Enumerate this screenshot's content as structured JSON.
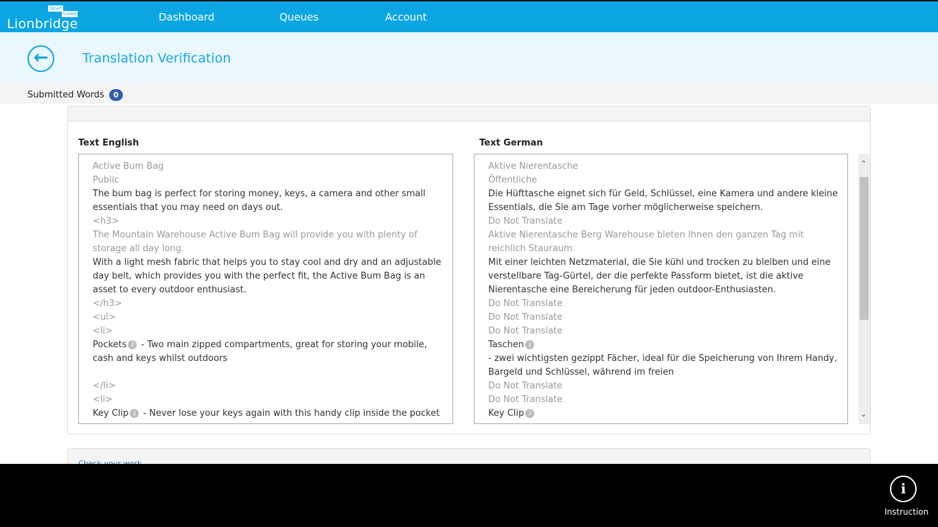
{
  "brand": {
    "name": "Lionbridge",
    "badge1": "Smart",
    "badge2": "Crowd"
  },
  "nav": {
    "dashboard": "Dashboard",
    "queues": "Queues",
    "account": "Account"
  },
  "page": {
    "title": "Translation Verification"
  },
  "submitted": {
    "label": "Submitted Words",
    "count": "0"
  },
  "source": {
    "label": "Text English",
    "lines": [
      {
        "t": "Active Bum Bag",
        "muted": true
      },
      {
        "t": "Public",
        "muted": true
      },
      {
        "t": "The bum bag is perfect for storing money, keys, a camera and other small essentials that you may need on days out.",
        "muted": false
      },
      {
        "t": "<h3>",
        "muted": true
      },
      {
        "t": "The Mountain Warehouse Active Bum Bag will provide you with plenty of storage all day long.",
        "muted": true
      },
      {
        "t": "With a light mesh fabric that helps you to stay cool and dry and an adjustable day belt, which provides you with the perfect fit, the Active Bum Bag is an asset to every outdoor enthusiast.",
        "muted": false
      },
      {
        "t": "</h3>",
        "muted": true
      },
      {
        "t": "<ul>",
        "muted": true
      },
      {
        "t": "<li>",
        "muted": true
      },
      {
        "t": "Pockets",
        "badge": "2",
        "after": " - Two main zipped compartments, great for storing your mobile, cash and keys whilst outdoors",
        "muted": false
      },
      {
        "t": " ",
        "muted": false
      },
      {
        "t": "</li>",
        "muted": true
      },
      {
        "t": "<li>",
        "muted": true
      },
      {
        "t": "Key Clip",
        "badge": "2",
        "after": " - Never lose your keys again with this handy clip inside the pocket",
        "muted": false
      }
    ]
  },
  "target": {
    "label": "Text German",
    "lines": [
      {
        "t": "Aktive Nierentasche",
        "muted": true
      },
      {
        "t": "Öffentliche",
        "muted": true
      },
      {
        "t": "Die Hüfttasche eignet sich für Geld, Schlüssel, eine Kamera und andere kleine Essentials, die Sie am Tage vorher möglicherweise speichern.",
        "muted": false
      },
      {
        "t": "Do Not Translate",
        "muted": true
      },
      {
        "t": "Aktive Nierentasche Berg Warehouse bieten Ihnen den ganzen Tag mit reichlich Stauraum.",
        "muted": true
      },
      {
        "t": "Mit einer leichten Netzmaterial, die Sie kühl und trocken zu bleiben und eine verstellbare Tag-Gürtel, der die perfekte Passform bietet, ist die aktive Nierentasche eine Bereicherung für jeden outdoor-Enthusiasten.",
        "muted": false
      },
      {
        "t": "Do Not Translate",
        "muted": true
      },
      {
        "t": "Do Not Translate",
        "muted": true
      },
      {
        "t": "Do Not Translate",
        "muted": true
      },
      {
        "t": "Taschen",
        "badge": "2",
        "muted": false
      },
      {
        "t": "- zwei wichtigsten gezippt Fächer, ideal für die Speicherung von Ihrem Handy, Bargeld und Schlüssel, während im freien",
        "muted": false
      },
      {
        "t": "Do Not Translate",
        "muted": true
      },
      {
        "t": "Do Not Translate",
        "muted": true
      },
      {
        "t": "Key Clip",
        "badge": "2",
        "muted": false
      }
    ]
  },
  "bottom": {
    "link": "Check your work"
  },
  "footer": {
    "instruction": "Instruction"
  }
}
